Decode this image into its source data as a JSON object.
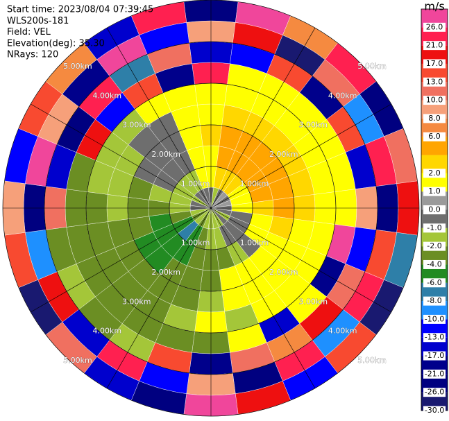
{
  "chart_data": {
    "type": "polar-heatmap",
    "header_lines": [
      "Start time: 2023/08/04 07:39:45",
      "WLS200s-181",
      "Field: VEL",
      "Elevation(deg): 35.30",
      "NRays: 120"
    ],
    "azimuths": [
      0,
      15,
      30,
      45,
      60,
      75,
      90,
      105,
      120,
      135,
      150,
      165,
      180,
      195,
      210,
      225,
      240,
      255,
      270,
      285,
      300,
      315,
      330,
      345
    ],
    "range_edges": [
      0,
      0.5,
      1,
      1.5,
      2,
      2.5,
      3,
      3.5,
      4,
      4.5,
      5
    ],
    "values": [
      [
        -0.5,
        1.5,
        1.5,
        3,
        1.5,
        1.5,
        22,
        -15,
        9,
        -23
      ],
      [
        -1.5,
        3,
        5,
        5,
        3,
        1.5,
        1.5,
        -11,
        18,
        27
      ],
      [
        -0.5,
        3,
        5,
        5,
        3,
        1.5,
        1.5,
        14,
        -27,
        7
      ],
      [
        0.5,
        3,
        5,
        5,
        3,
        1.5,
        1.5,
        -19,
        11,
        24
      ],
      [
        -0.5,
        1.5,
        5,
        5,
        3,
        1.5,
        1.5,
        16,
        -9,
        -24
      ],
      [
        0.5,
        1.5,
        5,
        5,
        3,
        1.5,
        1.5,
        -14,
        23,
        12
      ],
      [
        -0.5,
        1.5,
        3,
        5,
        3,
        1.5,
        1.5,
        9,
        -22,
        19
      ],
      [
        -0.5,
        -0.5,
        1.5,
        3,
        1.5,
        1.5,
        28,
        -12,
        15,
        -7
      ],
      [
        -1.5,
        -0.5,
        1.5,
        1.5,
        1.5,
        1.5,
        -18,
        11,
        25,
        -28
      ],
      [
        -0.5,
        -0.5,
        -0.5,
        1.5,
        1.5,
        1.5,
        1.5,
        20,
        -9,
        14
      ],
      [
        -1.5,
        -0.5,
        -1.5,
        1.5,
        1.5,
        1.5,
        -16,
        7,
        22,
        -12
      ],
      [
        -1.5,
        -1.5,
        -3,
        1.5,
        1.5,
        -1.5,
        1.5,
        12,
        -25,
        18
      ],
      [
        -1.5,
        -1.5,
        -3,
        -3,
        -1.5,
        1.5,
        -3,
        -20,
        9,
        27
      ],
      [
        -1.5,
        -3,
        -3,
        -3,
        -3,
        -1.5,
        -3,
        15,
        -11,
        -23
      ],
      [
        -3,
        -5,
        -5,
        -3,
        -3,
        -3,
        -3,
        -1.5,
        24,
        -14
      ],
      [
        -1.5,
        -7,
        -5,
        -5,
        -3,
        -3,
        -3,
        -3,
        -17,
        11
      ],
      [
        -3,
        -5,
        -5,
        -5,
        -3,
        -3,
        -3,
        -1.5,
        19,
        -27
      ],
      [
        -1.5,
        -3,
        -5,
        -3,
        -3,
        -3,
        -3,
        -3,
        -9,
        14
      ],
      [
        -0.5,
        -1.5,
        -3,
        -3,
        -1.5,
        -3,
        -3,
        12,
        -22,
        8
      ],
      [
        -0.5,
        -1.5,
        -1.5,
        -3,
        -1.5,
        -1.5,
        -3,
        -15,
        26,
        -11
      ],
      [
        -1.5,
        -1.5,
        -0.5,
        -0.5,
        -1.5,
        -1.5,
        18,
        -24,
        9,
        15
      ],
      [
        -0.5,
        -1.5,
        -0.5,
        -0.5,
        -0.5,
        -1.5,
        -12,
        21,
        -19,
        7
      ],
      [
        -0.5,
        -1.5,
        -0.5,
        -0.5,
        -0.5,
        1.5,
        14,
        -8,
        27,
        -16
      ],
      [
        -0.5,
        1.5,
        1.5,
        1.5,
        1.5,
        1.5,
        -21,
        10,
        -13,
        23
      ]
    ],
    "rings": [
      {
        "value": 1,
        "label": "1.00km"
      },
      {
        "value": 2,
        "label": "2.00km"
      },
      {
        "value": 3,
        "label": "3.00km"
      },
      {
        "value": 4,
        "label": "4.00km"
      },
      {
        "value": 5,
        "label": "5.00km"
      }
    ],
    "colorbar": {
      "title": "m/s",
      "bounds": [
        -30,
        -26,
        -21,
        -17,
        -13,
        -10,
        -8,
        -6,
        -4,
        -2,
        -1,
        0,
        1,
        2,
        4,
        6,
        8,
        10,
        13,
        17,
        21,
        26,
        30
      ],
      "colors": [
        "#191970",
        "#000080",
        "#00008b",
        "#0000cd",
        "#0000ff",
        "#1e90ff",
        "#2e7fa8",
        "#228b22",
        "#6b8e23",
        "#a4c639",
        "#6e6e6e",
        "#9a9a9a",
        "#ffff00",
        "#ffd700",
        "#ffa500",
        "#f58a40",
        "#f6a07a",
        "#f07060",
        "#f84a30",
        "#ee1010",
        "#ff2050",
        "#f0469b"
      ],
      "ticks": [
        {
          "value": 26,
          "label": "26.0"
        },
        {
          "value": 21,
          "label": "21.0"
        },
        {
          "value": 17,
          "label": "17.0"
        },
        {
          "value": 13,
          "label": "13.0"
        },
        {
          "value": 10,
          "label": "10.0"
        },
        {
          "value": 8,
          "label": "8.0"
        },
        {
          "value": 6,
          "label": "6.0"
        },
        {
          "value": 2,
          "label": "2.0"
        },
        {
          "value": 1,
          "label": "1.0"
        },
        {
          "value": 0,
          "label": "0.0"
        },
        {
          "value": -1,
          "label": "-1.0"
        },
        {
          "value": -2,
          "label": "-2.0"
        },
        {
          "value": -4,
          "label": "-4.0"
        },
        {
          "value": -6,
          "label": "-6.0"
        },
        {
          "value": -8,
          "label": "-8.0"
        },
        {
          "value": -10,
          "label": "-10.0"
        },
        {
          "value": -13,
          "label": "-13.0"
        },
        {
          "value": -17,
          "label": "-17.0"
        },
        {
          "value": -21,
          "label": "-21.0"
        },
        {
          "value": -26,
          "label": "-26.0"
        },
        {
          "value": -30,
          "label": "-30.0"
        }
      ]
    }
  }
}
